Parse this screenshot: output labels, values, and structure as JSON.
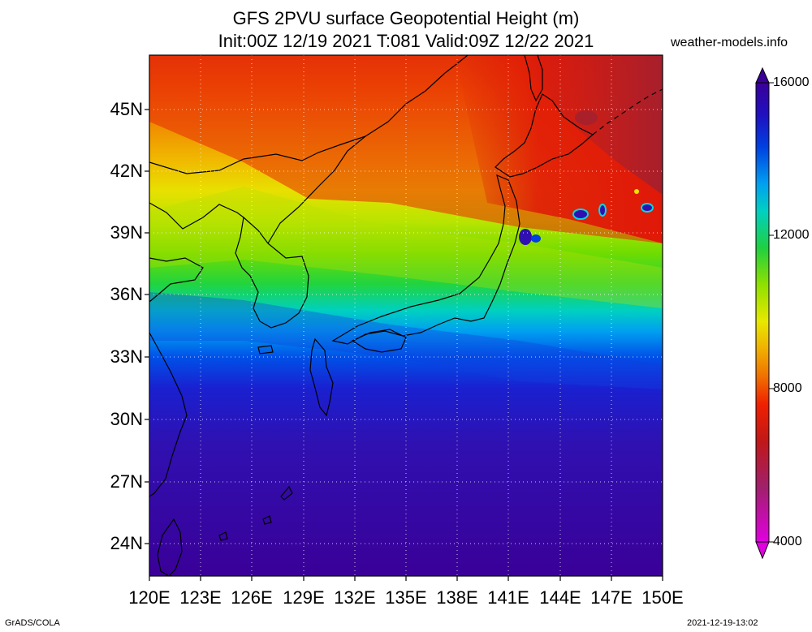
{
  "title": {
    "line1": "GFS 2PVU surface Geopotential Height (m)",
    "line2": "Init:00Z 12/19 2021 T:081 Valid:09Z 12/22 2021"
  },
  "source": "weather-models.info",
  "footer": {
    "left": "GrADS/COLA",
    "right": "2021-12-19-13:02"
  },
  "map": {
    "lat_labels": [
      "45N",
      "42N",
      "39N",
      "36N",
      "33N",
      "30N",
      "27N",
      "24N"
    ],
    "lon_labels": [
      "120E",
      "123E",
      "126E",
      "129E",
      "132E",
      "135E",
      "138E",
      "141E",
      "144E",
      "147E",
      "150E"
    ],
    "lat_range": [
      22.4,
      47.8
    ],
    "lon_range": [
      120,
      150
    ]
  },
  "colorbar": {
    "labels": [
      "16000",
      "12000",
      "8000",
      "4000"
    ],
    "min": 4000,
    "max": 16000,
    "colors": [
      "#e000e0",
      "#c02aa0",
      "#a0206a",
      "#b41e28",
      "#d41010",
      "#f02000",
      "#f04a00",
      "#f07800",
      "#f0a000",
      "#f0c800",
      "#e8e800",
      "#c8e800",
      "#a0e000",
      "#70dc00",
      "#30dc20",
      "#10c060",
      "#00d0b0",
      "#00d8e0",
      "#00a8f0",
      "#0078f0",
      "#0050e8",
      "#0030e0",
      "#1020d0",
      "#2010c0",
      "#3008a8",
      "#3a0098"
    ]
  }
}
